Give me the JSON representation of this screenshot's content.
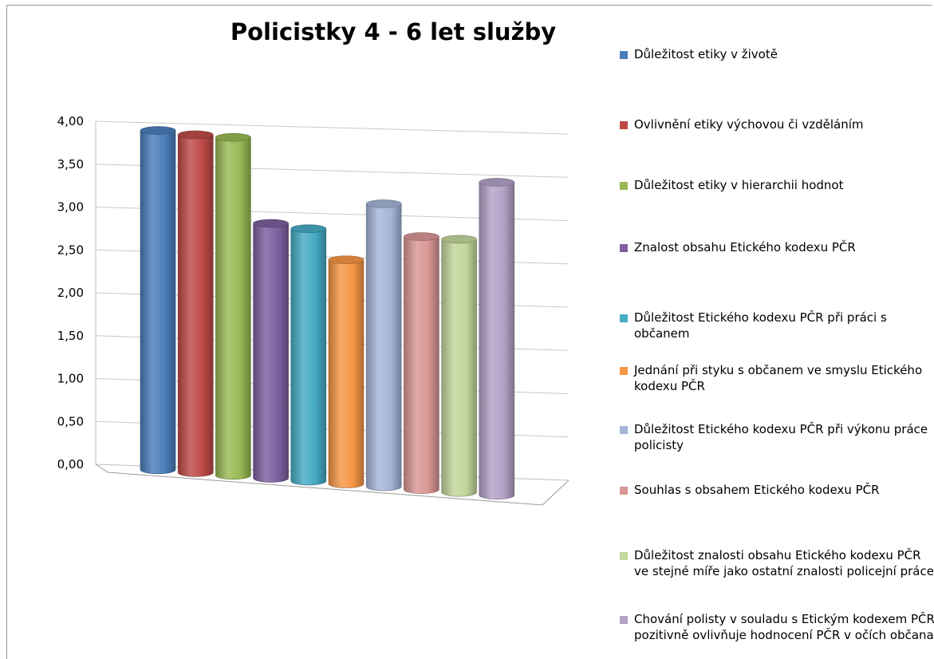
{
  "chart_data": {
    "type": "bar",
    "title": "Policistky 4 - 6 let služby",
    "xlabel": "",
    "ylabel": "",
    "ylim": [
      0,
      4
    ],
    "yticks": [
      "0,00",
      "0,50",
      "1,00",
      "1,50",
      "2,00",
      "2,50",
      "3,00",
      "3,50",
      "4,00"
    ],
    "grid": true,
    "legend_position": "right",
    "series": [
      {
        "name": "Důležitost etiky v životě",
        "value": 3.95,
        "color": "#4a7ebb"
      },
      {
        "name": "Ovlivnění etiky výchovou či vzděláním",
        "value": 3.93,
        "color": "#be4b48"
      },
      {
        "name": "Důležitost etiky v hierarchii hodnot",
        "value": 3.93,
        "color": "#98b954"
      },
      {
        "name": "Znalost obsahu Etického kodexu PČR",
        "value": 2.96,
        "color": "#7d60a0"
      },
      {
        "name": "Důležitost Etického kodexu PČR při práci s občanem",
        "value": 2.93,
        "color": "#46aac5"
      },
      {
        "name": "Jednání při styku s občanem  ve smyslu Etického kodexu PČR",
        "value": 2.6,
        "color": "#f79646"
      },
      {
        "name": "Důležitost Etického kodexu PČR při výkonu práce policisty",
        "value": 3.28,
        "color": "#a5b6d9"
      },
      {
        "name": "Souhlas s obsahem Etického kodexu PČR",
        "value": 2.93,
        "color": "#d99694"
      },
      {
        "name": "Důležitost znalosti obsahu Etického kodexu PČR ve stejné míře jako ostatní znalosti policejní práce",
        "value": 2.93,
        "color": "#c3d69b"
      },
      {
        "name": "Chování polisty v souladu s Etickým kodexem PČR pozitivně ovlivňuje hodnocení PČR v očích občana",
        "value": 3.62,
        "color": "#b3a2c7"
      }
    ]
  }
}
